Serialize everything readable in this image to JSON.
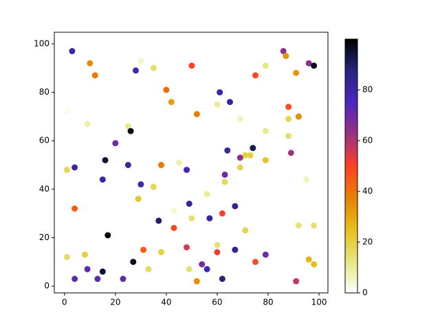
{
  "chart_data": {
    "type": "scatter",
    "x": [
      3,
      10,
      12,
      28,
      30,
      35,
      50,
      40,
      42,
      52,
      61,
      60,
      65,
      75,
      79,
      86,
      87,
      91,
      96,
      98,
      1,
      9,
      25,
      26,
      20,
      1,
      4,
      16,
      15,
      25,
      30,
      38,
      45,
      48,
      35,
      29,
      4,
      43,
      49,
      56,
      69,
      79,
      88,
      88,
      92,
      88,
      89,
      74,
      64,
      71,
      73,
      69,
      63,
      69,
      79,
      63,
      95,
      67,
      62,
      57,
      50,
      37,
      43,
      17,
      71,
      92,
      98,
      1,
      8,
      27,
      31,
      38,
      48,
      60,
      60,
      67,
      75,
      79,
      96,
      98,
      4,
      9,
      13,
      15,
      23,
      33,
      49,
      52,
      54,
      56,
      62,
      91
    ],
    "y": [
      97,
      92,
      87,
      89,
      93,
      90,
      91,
      81,
      76,
      71,
      80,
      75,
      76,
      87,
      91,
      97,
      95,
      88,
      92,
      91,
      72,
      67,
      66,
      64,
      59,
      48,
      49,
      52,
      44,
      50,
      42,
      50,
      51,
      48,
      41,
      36,
      32,
      31,
      34,
      38,
      69,
      64,
      74,
      69,
      70,
      62,
      55,
      57,
      56,
      54,
      54,
      53,
      46,
      49,
      52,
      43,
      44,
      33,
      30,
      28,
      28,
      27,
      24,
      21,
      23,
      25,
      25,
      12,
      13,
      10,
      15,
      14,
      16,
      17,
      14,
      15,
      10,
      13,
      11,
      9,
      3,
      7,
      3,
      6,
      3,
      7,
      7,
      2,
      9,
      7,
      3,
      2
    ],
    "c": [
      80,
      35,
      38,
      78,
      5,
      15,
      50,
      42,
      32,
      38,
      80,
      10,
      82,
      48,
      12,
      65,
      33,
      33,
      65,
      98,
      2,
      8,
      12,
      98,
      70,
      18,
      80,
      95,
      80,
      82,
      78,
      38,
      8,
      78,
      18,
      22,
      45,
      4,
      82,
      10,
      7,
      11,
      48,
      18,
      35,
      15,
      62,
      92,
      82,
      20,
      20,
      65,
      70,
      18,
      23,
      17,
      6,
      85,
      50,
      82,
      14,
      90,
      48,
      99,
      18,
      14,
      14,
      16,
      20,
      97,
      45,
      20,
      55,
      14,
      52,
      85,
      48,
      70,
      27,
      25,
      72,
      72,
      72,
      95,
      72,
      16,
      14,
      35,
      68,
      78,
      88,
      58
    ],
    "xlim": [
      -4,
      103.5
    ],
    "ylim": [
      -2.8,
      104.8
    ],
    "xticks": [
      0,
      20,
      40,
      60,
      80,
      100
    ],
    "yticks": [
      0,
      20,
      40,
      60,
      80,
      100
    ],
    "colorbar": {
      "clim": [
        0,
        100
      ],
      "ticks": [
        0,
        20,
        40,
        60,
        80
      ],
      "colormap": [
        "#ffffff",
        "#e6e680",
        "#e6bf1a",
        "#e68000",
        "#ff4026",
        "#993380",
        "#4d26bf",
        "#262680",
        "#000000"
      ]
    }
  }
}
